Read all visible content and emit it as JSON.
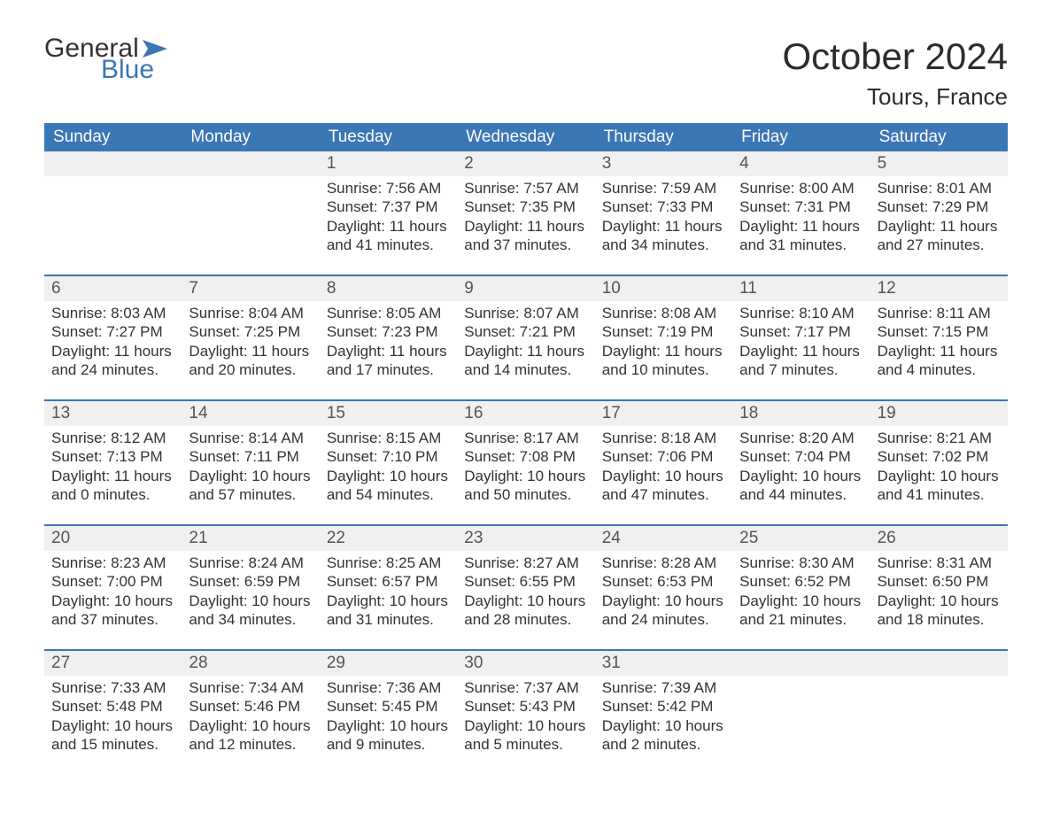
{
  "brand": {
    "general": "General",
    "blue": "Blue",
    "flag_color": "#3b76b5"
  },
  "title": "October 2024",
  "subtitle": "Tours, France",
  "colors": {
    "header_bg": "#3b76b5",
    "header_text": "#ffffff",
    "daynum_bg": "#f0f0f0",
    "body_text": "#333333",
    "week_border": "#3b76b5",
    "page_bg": "#ffffff"
  },
  "fontsizes": {
    "title": 42,
    "subtitle": 26,
    "dow": 19,
    "daynum": 19,
    "body": 17,
    "logo": 30
  },
  "days_of_week": [
    "Sunday",
    "Monday",
    "Tuesday",
    "Wednesday",
    "Thursday",
    "Friday",
    "Saturday"
  ],
  "weeks": [
    [
      {
        "day": "",
        "sunrise": "",
        "sunset": "",
        "daylight_a": "",
        "daylight_b": ""
      },
      {
        "day": "",
        "sunrise": "",
        "sunset": "",
        "daylight_a": "",
        "daylight_b": ""
      },
      {
        "day": "1",
        "sunrise": "Sunrise: 7:56 AM",
        "sunset": "Sunset: 7:37 PM",
        "daylight_a": "Daylight: 11 hours",
        "daylight_b": "and 41 minutes."
      },
      {
        "day": "2",
        "sunrise": "Sunrise: 7:57 AM",
        "sunset": "Sunset: 7:35 PM",
        "daylight_a": "Daylight: 11 hours",
        "daylight_b": "and 37 minutes."
      },
      {
        "day": "3",
        "sunrise": "Sunrise: 7:59 AM",
        "sunset": "Sunset: 7:33 PM",
        "daylight_a": "Daylight: 11 hours",
        "daylight_b": "and 34 minutes."
      },
      {
        "day": "4",
        "sunrise": "Sunrise: 8:00 AM",
        "sunset": "Sunset: 7:31 PM",
        "daylight_a": "Daylight: 11 hours",
        "daylight_b": "and 31 minutes."
      },
      {
        "day": "5",
        "sunrise": "Sunrise: 8:01 AM",
        "sunset": "Sunset: 7:29 PM",
        "daylight_a": "Daylight: 11 hours",
        "daylight_b": "and 27 minutes."
      }
    ],
    [
      {
        "day": "6",
        "sunrise": "Sunrise: 8:03 AM",
        "sunset": "Sunset: 7:27 PM",
        "daylight_a": "Daylight: 11 hours",
        "daylight_b": "and 24 minutes."
      },
      {
        "day": "7",
        "sunrise": "Sunrise: 8:04 AM",
        "sunset": "Sunset: 7:25 PM",
        "daylight_a": "Daylight: 11 hours",
        "daylight_b": "and 20 minutes."
      },
      {
        "day": "8",
        "sunrise": "Sunrise: 8:05 AM",
        "sunset": "Sunset: 7:23 PM",
        "daylight_a": "Daylight: 11 hours",
        "daylight_b": "and 17 minutes."
      },
      {
        "day": "9",
        "sunrise": "Sunrise: 8:07 AM",
        "sunset": "Sunset: 7:21 PM",
        "daylight_a": "Daylight: 11 hours",
        "daylight_b": "and 14 minutes."
      },
      {
        "day": "10",
        "sunrise": "Sunrise: 8:08 AM",
        "sunset": "Sunset: 7:19 PM",
        "daylight_a": "Daylight: 11 hours",
        "daylight_b": "and 10 minutes."
      },
      {
        "day": "11",
        "sunrise": "Sunrise: 8:10 AM",
        "sunset": "Sunset: 7:17 PM",
        "daylight_a": "Daylight: 11 hours",
        "daylight_b": "and 7 minutes."
      },
      {
        "day": "12",
        "sunrise": "Sunrise: 8:11 AM",
        "sunset": "Sunset: 7:15 PM",
        "daylight_a": "Daylight: 11 hours",
        "daylight_b": "and 4 minutes."
      }
    ],
    [
      {
        "day": "13",
        "sunrise": "Sunrise: 8:12 AM",
        "sunset": "Sunset: 7:13 PM",
        "daylight_a": "Daylight: 11 hours",
        "daylight_b": "and 0 minutes."
      },
      {
        "day": "14",
        "sunrise": "Sunrise: 8:14 AM",
        "sunset": "Sunset: 7:11 PM",
        "daylight_a": "Daylight: 10 hours",
        "daylight_b": "and 57 minutes."
      },
      {
        "day": "15",
        "sunrise": "Sunrise: 8:15 AM",
        "sunset": "Sunset: 7:10 PM",
        "daylight_a": "Daylight: 10 hours",
        "daylight_b": "and 54 minutes."
      },
      {
        "day": "16",
        "sunrise": "Sunrise: 8:17 AM",
        "sunset": "Sunset: 7:08 PM",
        "daylight_a": "Daylight: 10 hours",
        "daylight_b": "and 50 minutes."
      },
      {
        "day": "17",
        "sunrise": "Sunrise: 8:18 AM",
        "sunset": "Sunset: 7:06 PM",
        "daylight_a": "Daylight: 10 hours",
        "daylight_b": "and 47 minutes."
      },
      {
        "day": "18",
        "sunrise": "Sunrise: 8:20 AM",
        "sunset": "Sunset: 7:04 PM",
        "daylight_a": "Daylight: 10 hours",
        "daylight_b": "and 44 minutes."
      },
      {
        "day": "19",
        "sunrise": "Sunrise: 8:21 AM",
        "sunset": "Sunset: 7:02 PM",
        "daylight_a": "Daylight: 10 hours",
        "daylight_b": "and 41 minutes."
      }
    ],
    [
      {
        "day": "20",
        "sunrise": "Sunrise: 8:23 AM",
        "sunset": "Sunset: 7:00 PM",
        "daylight_a": "Daylight: 10 hours",
        "daylight_b": "and 37 minutes."
      },
      {
        "day": "21",
        "sunrise": "Sunrise: 8:24 AM",
        "sunset": "Sunset: 6:59 PM",
        "daylight_a": "Daylight: 10 hours",
        "daylight_b": "and 34 minutes."
      },
      {
        "day": "22",
        "sunrise": "Sunrise: 8:25 AM",
        "sunset": "Sunset: 6:57 PM",
        "daylight_a": "Daylight: 10 hours",
        "daylight_b": "and 31 minutes."
      },
      {
        "day": "23",
        "sunrise": "Sunrise: 8:27 AM",
        "sunset": "Sunset: 6:55 PM",
        "daylight_a": "Daylight: 10 hours",
        "daylight_b": "and 28 minutes."
      },
      {
        "day": "24",
        "sunrise": "Sunrise: 8:28 AM",
        "sunset": "Sunset: 6:53 PM",
        "daylight_a": "Daylight: 10 hours",
        "daylight_b": "and 24 minutes."
      },
      {
        "day": "25",
        "sunrise": "Sunrise: 8:30 AM",
        "sunset": "Sunset: 6:52 PM",
        "daylight_a": "Daylight: 10 hours",
        "daylight_b": "and 21 minutes."
      },
      {
        "day": "26",
        "sunrise": "Sunrise: 8:31 AM",
        "sunset": "Sunset: 6:50 PM",
        "daylight_a": "Daylight: 10 hours",
        "daylight_b": "and 18 minutes."
      }
    ],
    [
      {
        "day": "27",
        "sunrise": "Sunrise: 7:33 AM",
        "sunset": "Sunset: 5:48 PM",
        "daylight_a": "Daylight: 10 hours",
        "daylight_b": "and 15 minutes."
      },
      {
        "day": "28",
        "sunrise": "Sunrise: 7:34 AM",
        "sunset": "Sunset: 5:46 PM",
        "daylight_a": "Daylight: 10 hours",
        "daylight_b": "and 12 minutes."
      },
      {
        "day": "29",
        "sunrise": "Sunrise: 7:36 AM",
        "sunset": "Sunset: 5:45 PM",
        "daylight_a": "Daylight: 10 hours",
        "daylight_b": "and 9 minutes."
      },
      {
        "day": "30",
        "sunrise": "Sunrise: 7:37 AM",
        "sunset": "Sunset: 5:43 PM",
        "daylight_a": "Daylight: 10 hours",
        "daylight_b": "and 5 minutes."
      },
      {
        "day": "31",
        "sunrise": "Sunrise: 7:39 AM",
        "sunset": "Sunset: 5:42 PM",
        "daylight_a": "Daylight: 10 hours",
        "daylight_b": "and 2 minutes."
      },
      {
        "day": "",
        "sunrise": "",
        "sunset": "",
        "daylight_a": "",
        "daylight_b": ""
      },
      {
        "day": "",
        "sunrise": "",
        "sunset": "",
        "daylight_a": "",
        "daylight_b": ""
      }
    ]
  ]
}
